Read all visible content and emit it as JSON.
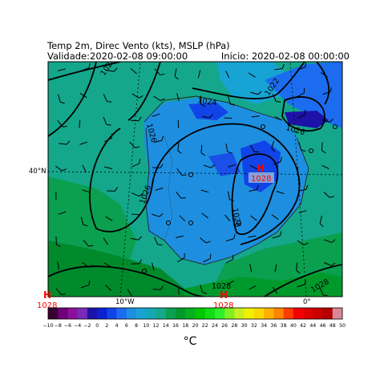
{
  "header": {
    "title": "Temp 2m, Direc Vento (kts), MSLP (hPa)",
    "validity": "Validade:2020-02-08 09:00:00",
    "init": "Inicio: 2020-02-08 00:00:00"
  },
  "map": {
    "lat_label": "40°N",
    "lon_labels": [
      "10°W",
      "0°"
    ],
    "high_pressure_centers": [
      {
        "symbol": "H",
        "value": "1028",
        "location": "centro peninsular"
      },
      {
        "symbol": "H",
        "value": "1028",
        "location": "canto inferior esquerdo"
      },
      {
        "symbol": "H",
        "value": "1028",
        "location": "centro inferior"
      }
    ],
    "isobar_labels": [
      "1024",
      "1024",
      "1022",
      "1026",
      "1026",
      "1026",
      "1028",
      "1028",
      "1028"
    ],
    "colors": {
      "sea": "#14a78b",
      "land_cool": "#1e8fe0",
      "land_cold": "#1a4fe8",
      "land_green": "#0aa050",
      "land_dark_green": "#008a2c",
      "isobar": "#000000",
      "high_label": "#ff0000"
    }
  },
  "colorbar": {
    "unit_label": "°C",
    "tick_labels": [
      "−10",
      "−8",
      "−6",
      "−4",
      "−2",
      "0",
      "2",
      "4",
      "6",
      "8",
      "10",
      "12",
      "14",
      "16",
      "18",
      "20",
      "22",
      "24",
      "26",
      "28",
      "30",
      "32",
      "34",
      "36",
      "38",
      "40",
      "42",
      "44",
      "46",
      "48",
      "50"
    ],
    "min": -10,
    "max": 50,
    "step": 2,
    "colors": [
      "#3a0030",
      "#6e0078",
      "#8c109e",
      "#7a2ab8",
      "#1c12a8",
      "#0c20d0",
      "#1044e8",
      "#1c6cf0",
      "#1e8fe0",
      "#17a4d4",
      "#14a7b4",
      "#14a78b",
      "#0aa050",
      "#009a2c",
      "#06b020",
      "#00c800",
      "#12dc14",
      "#2cf02c",
      "#80f020",
      "#c8f020",
      "#f0f000",
      "#f8d800",
      "#ffb000",
      "#ff8400",
      "#ff3c00",
      "#f00000",
      "#dc0000",
      "#c80000",
      "#b40000",
      "#d88898"
    ]
  }
}
